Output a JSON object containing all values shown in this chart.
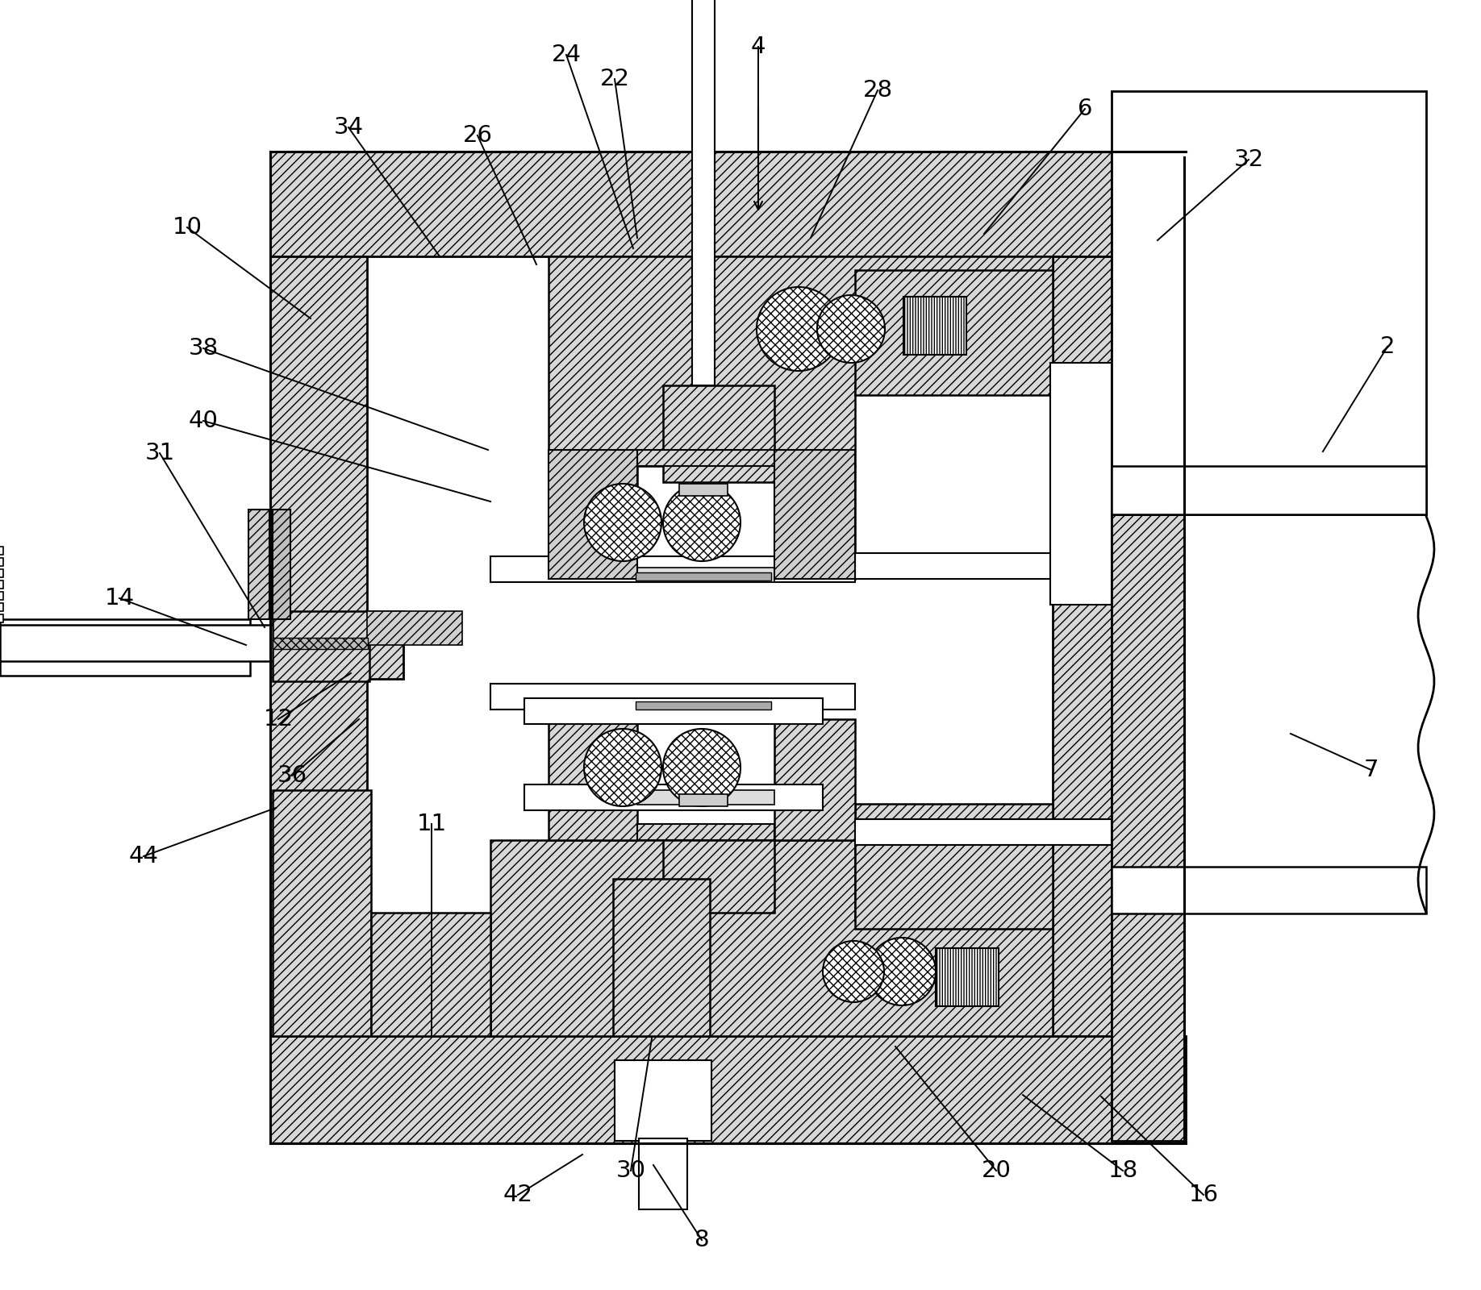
{
  "fig_width": 18.36,
  "fig_height": 16.0,
  "bg_color": "#ffffff",
  "labels_data": [
    [
      2,
      1720,
      430,
      1640,
      560
    ],
    [
      4,
      940,
      58,
      940,
      210
    ],
    [
      6,
      1345,
      135,
      1220,
      290
    ],
    [
      7,
      1700,
      955,
      1600,
      910
    ],
    [
      8,
      870,
      1538,
      810,
      1445
    ],
    [
      10,
      232,
      282,
      385,
      395
    ],
    [
      11,
      535,
      1022,
      535,
      1285
    ],
    [
      12,
      345,
      892,
      435,
      835
    ],
    [
      14,
      148,
      742,
      305,
      800
    ],
    [
      16,
      1492,
      1482,
      1365,
      1360
    ],
    [
      18,
      1392,
      1452,
      1268,
      1358
    ],
    [
      20,
      1235,
      1452,
      1110,
      1298
    ],
    [
      22,
      762,
      98,
      790,
      295
    ],
    [
      24,
      702,
      68,
      785,
      308
    ],
    [
      26,
      592,
      168,
      665,
      328
    ],
    [
      28,
      1088,
      112,
      1005,
      295
    ],
    [
      30,
      782,
      1452,
      808,
      1288
    ],
    [
      31,
      198,
      562,
      328,
      778
    ],
    [
      32,
      1548,
      198,
      1435,
      298
    ],
    [
      34,
      432,
      158,
      545,
      318
    ],
    [
      36,
      362,
      962,
      445,
      892
    ],
    [
      38,
      252,
      432,
      605,
      558
    ],
    [
      40,
      252,
      522,
      608,
      622
    ],
    [
      42,
      642,
      1482,
      722,
      1432
    ],
    [
      44,
      178,
      1062,
      342,
      1002
    ]
  ]
}
